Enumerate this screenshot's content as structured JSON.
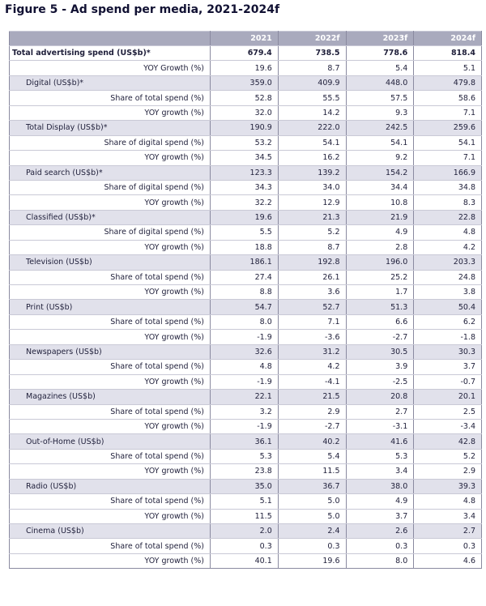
{
  "title": "Figure 5 - Ad spend per media, 2021-2024f",
  "table": {
    "columns": [
      "2021",
      "2022f",
      "2023f",
      "2024f"
    ],
    "rows": [
      {
        "type": "total",
        "label": "Total advertising spend (US$b)*",
        "values": [
          "679.4",
          "738.5",
          "778.6",
          "818.4"
        ]
      },
      {
        "type": "sub",
        "label": "YOY Growth (%)",
        "values": [
          "19.6",
          "8.7",
          "5.4",
          "5.1"
        ]
      },
      {
        "type": "cat",
        "label": "Digital (US$b)*",
        "values": [
          "359.0",
          "409.9",
          "448.0",
          "479.8"
        ]
      },
      {
        "type": "sub",
        "label": "Share of total spend (%)",
        "values": [
          "52.8",
          "55.5",
          "57.5",
          "58.6"
        ]
      },
      {
        "type": "sub",
        "label": "YOY growth (%)",
        "values": [
          "32.0",
          "14.2",
          "9.3",
          "7.1"
        ]
      },
      {
        "type": "cat",
        "label": "Total Display (US$b)*",
        "values": [
          "190.9",
          "222.0",
          "242.5",
          "259.6"
        ]
      },
      {
        "type": "sub",
        "label": "Share of digital spend (%)",
        "values": [
          "53.2",
          "54.1",
          "54.1",
          "54.1"
        ]
      },
      {
        "type": "sub",
        "label": "YOY growth (%)",
        "values": [
          "34.5",
          "16.2",
          "9.2",
          "7.1"
        ]
      },
      {
        "type": "cat",
        "label": "Paid search (US$b)*",
        "values": [
          "123.3",
          "139.2",
          "154.2",
          "166.9"
        ]
      },
      {
        "type": "sub",
        "label": "Share of digital spend (%)",
        "values": [
          "34.3",
          "34.0",
          "34.4",
          "34.8"
        ]
      },
      {
        "type": "sub",
        "label": "YOY growth (%)",
        "values": [
          "32.2",
          "12.9",
          "10.8",
          "8.3"
        ]
      },
      {
        "type": "cat",
        "label": "Classified (US$b)*",
        "values": [
          "19.6",
          "21.3",
          "21.9",
          "22.8"
        ]
      },
      {
        "type": "sub",
        "label": "Share of digital spend (%)",
        "values": [
          "5.5",
          "5.2",
          "4.9",
          "4.8"
        ]
      },
      {
        "type": "sub",
        "label": "YOY growth (%)",
        "values": [
          "18.8",
          "8.7",
          "2.8",
          "4.2"
        ]
      },
      {
        "type": "cat",
        "label": "Television (US$b)",
        "values": [
          "186.1",
          "192.8",
          "196.0",
          "203.3"
        ]
      },
      {
        "type": "sub",
        "label": "Share of total spend (%)",
        "values": [
          "27.4",
          "26.1",
          "25.2",
          "24.8"
        ]
      },
      {
        "type": "sub",
        "label": "YOY growth (%)",
        "values": [
          "8.8",
          "3.6",
          "1.7",
          "3.8"
        ]
      },
      {
        "type": "cat",
        "label": "Print (US$b)",
        "values": [
          "54.7",
          "52.7",
          "51.3",
          "50.4"
        ]
      },
      {
        "type": "sub",
        "label": "Share of total spend (%)",
        "values": [
          "8.0",
          "7.1",
          "6.6",
          "6.2"
        ]
      },
      {
        "type": "sub",
        "label": "YOY growth (%)",
        "values": [
          "-1.9",
          "-3.6",
          "-2.7",
          "-1.8"
        ]
      },
      {
        "type": "cat",
        "label": "Newspapers (US$b)",
        "values": [
          "32.6",
          "31.2",
          "30.5",
          "30.3"
        ]
      },
      {
        "type": "sub",
        "label": "Share of total spend (%)",
        "values": [
          "4.8",
          "4.2",
          "3.9",
          "3.7"
        ]
      },
      {
        "type": "sub",
        "label": "YOY growth (%)",
        "values": [
          "-1.9",
          "-4.1",
          "-2.5",
          "-0.7"
        ]
      },
      {
        "type": "cat",
        "label": "Magazines (US$b)",
        "values": [
          "22.1",
          "21.5",
          "20.8",
          "20.1"
        ]
      },
      {
        "type": "sub",
        "label": "Share of total spend (%)",
        "values": [
          "3.2",
          "2.9",
          "2.7",
          "2.5"
        ]
      },
      {
        "type": "sub",
        "label": "YOY growth (%)",
        "values": [
          "-1.9",
          "-2.7",
          "-3.1",
          "-3.4"
        ]
      },
      {
        "type": "cat",
        "label": "Out-of-Home (US$b)",
        "values": [
          "36.1",
          "40.2",
          "41.6",
          "42.8"
        ]
      },
      {
        "type": "sub",
        "label": "Share of total spend (%)",
        "values": [
          "5.3",
          "5.4",
          "5.3",
          "5.2"
        ]
      },
      {
        "type": "sub",
        "label": "YOY growth (%)",
        "values": [
          "23.8",
          "11.5",
          "3.4",
          "2.9"
        ]
      },
      {
        "type": "cat",
        "label": "Radio (US$b)",
        "values": [
          "35.0",
          "36.7",
          "38.0",
          "39.3"
        ]
      },
      {
        "type": "sub",
        "label": "Share of total spend (%)",
        "values": [
          "5.1",
          "5.0",
          "4.9",
          "4.8"
        ]
      },
      {
        "type": "sub",
        "label": "YOY growth (%)",
        "values": [
          "11.5",
          "5.0",
          "3.7",
          "3.4"
        ]
      },
      {
        "type": "cat",
        "label": "Cinema (US$b)",
        "values": [
          "2.0",
          "2.4",
          "2.6",
          "2.7"
        ]
      },
      {
        "type": "sub",
        "label": "Share of total spend (%)",
        "values": [
          "0.3",
          "0.3",
          "0.3",
          "0.3"
        ]
      },
      {
        "type": "sub",
        "label": "YOY growth (%)",
        "values": [
          "40.1",
          "19.6",
          "8.0",
          "4.6"
        ]
      }
    ]
  }
}
